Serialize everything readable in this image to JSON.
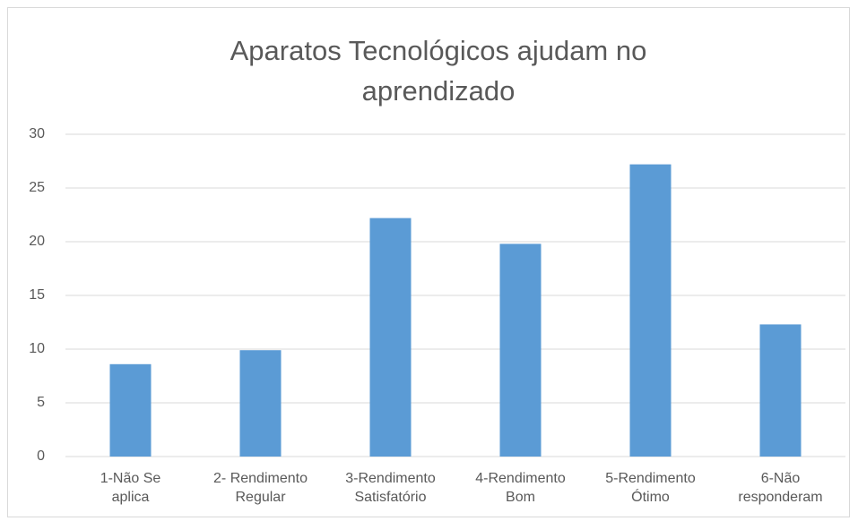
{
  "chart_data": {
    "type": "bar",
    "title": "Aparatos Tecnológicos ajudam no aprendizado",
    "categories": [
      "1-Não Se\naplica",
      "2- Rendimento\nRegular",
      "3-Rendimento\nSatisfatório",
      "4-Rendimento\nBom",
      "5-Rendimento\nÓtimo",
      "6-Não\nresponderam"
    ],
    "values": [
      8.6,
      9.9,
      22.2,
      19.8,
      27.2,
      12.3
    ],
    "color": "#5b9bd5",
    "ylim": [
      0,
      30
    ],
    "yticks": [
      0,
      5,
      10,
      15,
      20,
      25,
      30
    ],
    "grid": true
  }
}
